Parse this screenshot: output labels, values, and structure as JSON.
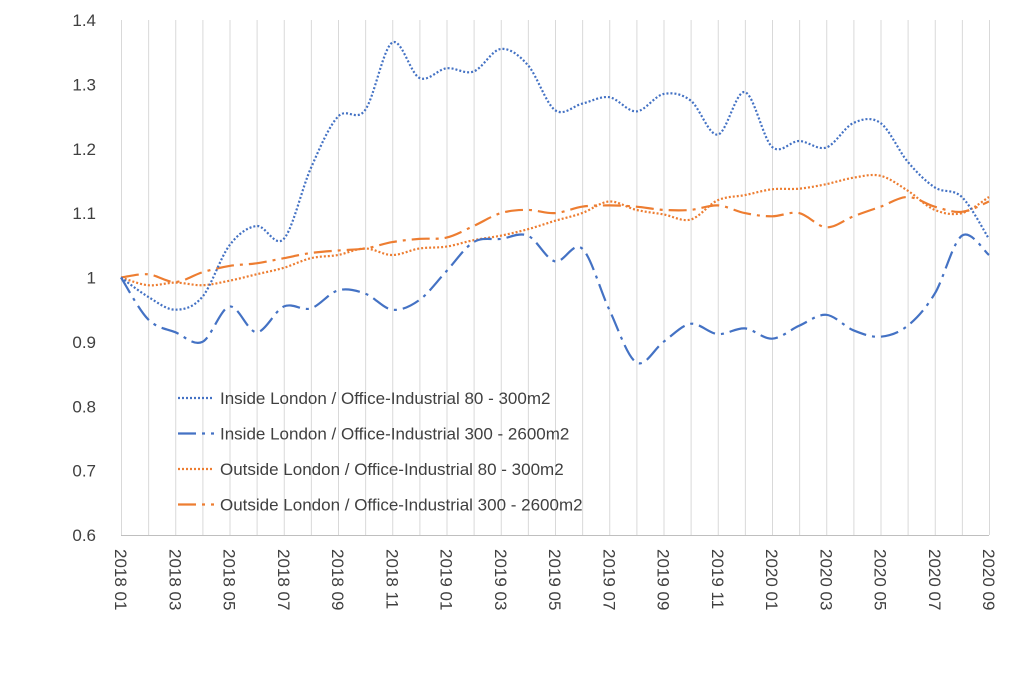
{
  "chart_data": {
    "type": "line",
    "title": "",
    "xlabel": "",
    "ylabel": "",
    "ylim": [
      0.6,
      1.4
    ],
    "y_ticks": [
      "0.6",
      "0.7",
      "0.8",
      "0.9",
      "1",
      "1.1",
      "1.2",
      "1.3",
      "1.4"
    ],
    "grid": "vertical gridlines at every month",
    "legend_position": "inside lower-left",
    "x_labels": [
      "2018 01",
      "2018 03",
      "2018 05",
      "2018 07",
      "2018 09",
      "2018 11",
      "2019 01",
      "2019 03",
      "2019 05",
      "2019 07",
      "2019 09",
      "2019 11",
      "2020 01",
      "2020 03",
      "2020 05",
      "2020 07",
      "2020 09"
    ],
    "x": [
      "2018 01",
      "2018 02",
      "2018 03",
      "2018 04",
      "2018 05",
      "2018 06",
      "2018 07",
      "2018 08",
      "2018 09",
      "2018 10",
      "2018 11",
      "2018 12",
      "2019 01",
      "2019 02",
      "2019 03",
      "2019 04",
      "2019 05",
      "2019 06",
      "2019 07",
      "2019 08",
      "2019 09",
      "2019 10",
      "2019 11",
      "2019 12",
      "2020 01",
      "2020 02",
      "2020 03",
      "2020 04",
      "2020 05",
      "2020 06",
      "2020 07",
      "2020 08",
      "2020 09"
    ],
    "series": [
      {
        "name": "Inside London / Office-Industrial 80 - 300m2",
        "color": "#4472C4",
        "dash": "dotted",
        "values": [
          1.0,
          0.97,
          0.95,
          0.97,
          1.05,
          1.08,
          1.06,
          1.17,
          1.25,
          1.26,
          1.365,
          1.31,
          1.325,
          1.32,
          1.355,
          1.33,
          1.26,
          1.27,
          1.28,
          1.258,
          1.285,
          1.275,
          1.222,
          1.288,
          1.203,
          1.212,
          1.202,
          1.24,
          1.24,
          1.18,
          1.14,
          1.125,
          1.06
        ]
      },
      {
        "name": "Inside London / Office-Industrial 300 - 2600m2",
        "color": "#4472C4",
        "dash": "long-dash-dot",
        "values": [
          1.0,
          0.935,
          0.915,
          0.9,
          0.955,
          0.915,
          0.955,
          0.952,
          0.98,
          0.975,
          0.95,
          0.965,
          1.01,
          1.055,
          1.06,
          1.065,
          1.025,
          1.045,
          0.95,
          0.868,
          0.9,
          0.928,
          0.912,
          0.921,
          0.905,
          0.925,
          0.942,
          0.918,
          0.908,
          0.925,
          0.975,
          1.065,
          1.035
        ]
      },
      {
        "name": "Outside London / Office-Industrial 80 - 300m2",
        "color": "#ED7D31",
        "dash": "dotted",
        "values": [
          1.0,
          0.988,
          0.992,
          0.988,
          0.995,
          1.005,
          1.015,
          1.03,
          1.035,
          1.045,
          1.035,
          1.045,
          1.048,
          1.058,
          1.065,
          1.075,
          1.088,
          1.1,
          1.118,
          1.105,
          1.098,
          1.09,
          1.12,
          1.128,
          1.137,
          1.138,
          1.145,
          1.155,
          1.158,
          1.135,
          1.105,
          1.1,
          1.125
        ]
      },
      {
        "name": "Outside London / Office-Industrial 300 - 2600m2",
        "color": "#ED7D31",
        "dash": "long-dash-dot",
        "values": [
          1.0,
          1.005,
          0.993,
          1.008,
          1.018,
          1.022,
          1.03,
          1.038,
          1.042,
          1.045,
          1.055,
          1.06,
          1.062,
          1.08,
          1.1,
          1.105,
          1.1,
          1.11,
          1.112,
          1.11,
          1.105,
          1.105,
          1.112,
          1.1,
          1.095,
          1.1,
          1.078,
          1.095,
          1.11,
          1.125,
          1.11,
          1.102,
          1.118
        ]
      }
    ]
  }
}
